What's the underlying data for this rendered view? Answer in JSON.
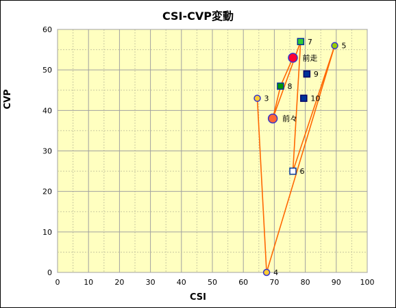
{
  "chart_data": {
    "type": "scatter",
    "title": "CSI-CVP変動",
    "xlabel": "CSI",
    "ylabel": "CVP",
    "xlim": [
      0,
      100
    ],
    "ylim": [
      0,
      60
    ],
    "xticks": [
      "0",
      "10",
      "20",
      "30",
      "40",
      "50",
      "60",
      "70",
      "80",
      "90",
      "100"
    ],
    "yticks": [
      "0",
      "10",
      "20",
      "30",
      "40",
      "50",
      "60"
    ],
    "grid": true,
    "background": "#ffffc0",
    "line_color": "#ff6600",
    "path_order": [
      "3",
      "4",
      "5",
      "6",
      "7",
      "前々",
      "8",
      "前走"
    ],
    "points": [
      {
        "label": "3",
        "x": 64.5,
        "y": 43,
        "marker": "circle",
        "fill": "#ffcc33",
        "stroke": "#3333cc",
        "size": "small"
      },
      {
        "label": "4",
        "x": 67.5,
        "y": 0,
        "marker": "circle",
        "fill": "#ffcc33",
        "stroke": "#3333cc",
        "size": "small"
      },
      {
        "label": "5",
        "x": 89.5,
        "y": 56,
        "marker": "circle",
        "fill": "#99cc00",
        "stroke": "#3333cc",
        "size": "small"
      },
      {
        "label": "6",
        "x": 76,
        "y": 25,
        "marker": "square",
        "fill": "#ffffff",
        "stroke": "#003399",
        "size": "small"
      },
      {
        "label": "7",
        "x": 78.5,
        "y": 57,
        "marker": "square",
        "fill": "#33cc33",
        "stroke": "#003399",
        "size": "small"
      },
      {
        "label": "8",
        "x": 72,
        "y": 46,
        "marker": "square",
        "fill": "#009900",
        "stroke": "#003399",
        "size": "small"
      },
      {
        "label": "9",
        "x": 80.5,
        "y": 49,
        "marker": "square",
        "fill": "#003399",
        "stroke": "#000066",
        "size": "small"
      },
      {
        "label": "10",
        "x": 79.5,
        "y": 43,
        "marker": "square",
        "fill": "#003399",
        "stroke": "#000066",
        "size": "small"
      },
      {
        "label": "前々",
        "x": 69.5,
        "y": 38,
        "marker": "circle",
        "fill": "#ff6633",
        "stroke": "#3333cc",
        "size": "large"
      },
      {
        "label": "前走",
        "x": 76,
        "y": 53,
        "marker": "circle",
        "fill": "#ff0033",
        "stroke": "#3333cc",
        "size": "large"
      }
    ]
  }
}
